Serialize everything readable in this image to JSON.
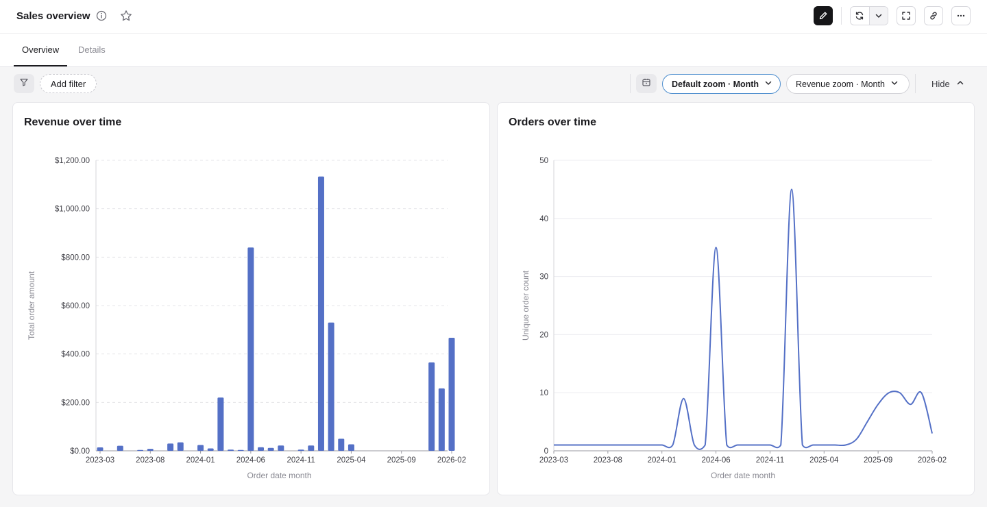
{
  "header": {
    "title": "Sales overview",
    "icons": [
      "info-icon",
      "star-icon",
      "pencil-icon",
      "refresh-icon",
      "chevron-down-icon",
      "fullscreen-icon",
      "link-icon",
      "more-icon"
    ]
  },
  "tabs": [
    {
      "label": "Overview",
      "active": true
    },
    {
      "label": "Details",
      "active": false
    }
  ],
  "filters": {
    "add_filter_label": "Add filter",
    "default_zoom_label": "Default zoom · Month",
    "revenue_zoom_label": "Revenue zoom · Month",
    "hide_label": "Hide"
  },
  "colors": {
    "accent": "#5470c6",
    "active_pill_border": "#4f8fcf"
  },
  "chart_data": [
    {
      "type": "bar",
      "title": "Revenue over time",
      "xlabel": "Order date month",
      "ylabel": "Total order amount",
      "x_range": [
        "2023-03",
        "2026-02"
      ],
      "x_ticks": [
        "2023-03",
        "2023-08",
        "2024-01",
        "2024-06",
        "2024-11",
        "2025-04",
        "2025-09",
        "2026-02"
      ],
      "ylim": [
        0,
        1200
      ],
      "y_ticks": [
        "$0.00",
        "$200.00",
        "$400.00",
        "$600.00",
        "$800.00",
        "$1,000.00",
        "$1,200.00"
      ],
      "grid": true,
      "categories": [
        "2023-03",
        "2023-04",
        "2023-05",
        "2023-06",
        "2023-07",
        "2023-08",
        "2023-09",
        "2023-10",
        "2023-11",
        "2023-12",
        "2024-01",
        "2024-02",
        "2024-03",
        "2024-04",
        "2024-05",
        "2024-06",
        "2024-07",
        "2024-08",
        "2024-09",
        "2024-10",
        "2024-11",
        "2024-12",
        "2025-01",
        "2025-02",
        "2025-03",
        "2025-04",
        "2025-05",
        "2025-06",
        "2025-07",
        "2025-08",
        "2025-09",
        "2025-10",
        "2025-11",
        "2025-12",
        "2026-01",
        "2026-02"
      ],
      "values": [
        14,
        0,
        21,
        0,
        3,
        8,
        0,
        30,
        35,
        0,
        24,
        10,
        220,
        5,
        2,
        840,
        15,
        12,
        22,
        0,
        5,
        22,
        1133,
        530,
        50,
        27,
        0,
        0,
        0,
        0,
        0,
        0,
        0,
        365,
        258,
        467
      ]
    },
    {
      "type": "line",
      "title": "Orders over time",
      "xlabel": "Order date month",
      "ylabel": "Unique order count",
      "x_range": [
        "2023-03",
        "2026-02"
      ],
      "x_ticks": [
        "2023-03",
        "2023-08",
        "2024-01",
        "2024-06",
        "2024-11",
        "2025-04",
        "2025-09",
        "2026-02"
      ],
      "ylim": [
        0,
        50
      ],
      "y_ticks": [
        "0",
        "10",
        "20",
        "30",
        "40",
        "50"
      ],
      "grid": true,
      "x": [
        "2023-03",
        "2023-04",
        "2023-05",
        "2023-06",
        "2023-07",
        "2023-08",
        "2023-09",
        "2023-10",
        "2023-11",
        "2023-12",
        "2024-01",
        "2024-02",
        "2024-03",
        "2024-04",
        "2024-05",
        "2024-06",
        "2024-07",
        "2024-08",
        "2024-09",
        "2024-10",
        "2024-11",
        "2024-12",
        "2025-01",
        "2025-02",
        "2025-03",
        "2025-04",
        "2025-05",
        "2025-06",
        "2025-07",
        "2025-08",
        "2025-09",
        "2025-10",
        "2025-11",
        "2025-12",
        "2026-01",
        "2026-02"
      ],
      "values": [
        1,
        1,
        1,
        1,
        1,
        1,
        1,
        1,
        1,
        1,
        1,
        1,
        9,
        1,
        1,
        35,
        1,
        1,
        1,
        1,
        1,
        1,
        45,
        1,
        1,
        1,
        1,
        1,
        2,
        5,
        8,
        10,
        10,
        8,
        10,
        3
      ]
    }
  ]
}
